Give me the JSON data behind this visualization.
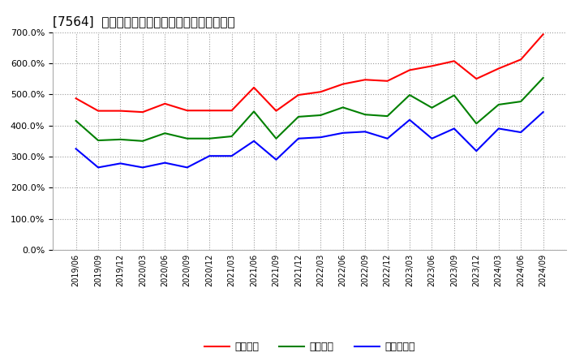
{
  "title": "[7564]  流動比率、当座比率、現頃金比率の推移",
  "x_labels": [
    "2019/06",
    "2019/09",
    "2019/12",
    "2020/03",
    "2020/06",
    "2020/09",
    "2020/12",
    "2021/03",
    "2021/06",
    "2021/09",
    "2021/12",
    "2022/03",
    "2022/06",
    "2022/09",
    "2022/12",
    "2023/03",
    "2023/06",
    "2023/09",
    "2023/12",
    "2024/03",
    "2024/06",
    "2024/09"
  ],
  "ryudo": [
    487,
    447,
    447,
    443,
    470,
    448,
    448,
    448,
    522,
    447,
    498,
    508,
    533,
    547,
    543,
    578,
    591,
    607,
    550,
    583,
    612,
    693
  ],
  "toza": [
    415,
    352,
    355,
    350,
    375,
    358,
    358,
    365,
    445,
    358,
    428,
    433,
    458,
    435,
    430,
    498,
    457,
    497,
    406,
    467,
    477,
    553
  ],
  "genyo": [
    325,
    265,
    278,
    265,
    280,
    265,
    302,
    302,
    350,
    290,
    358,
    362,
    376,
    380,
    358,
    418,
    358,
    390,
    318,
    390,
    378,
    443
  ],
  "colors": {
    "ryudo": "#ff0000",
    "toza": "#008000",
    "genyo": "#0000ff"
  },
  "legend": [
    "流動比率",
    "当座比率",
    "現頃金比率"
  ],
  "ylim": [
    0,
    700
  ],
  "yticks": [
    0,
    100,
    200,
    300,
    400,
    500,
    600,
    700
  ],
  "bg_color": "#ffffff",
  "grid_color": "#999999",
  "title_fontsize": 11
}
